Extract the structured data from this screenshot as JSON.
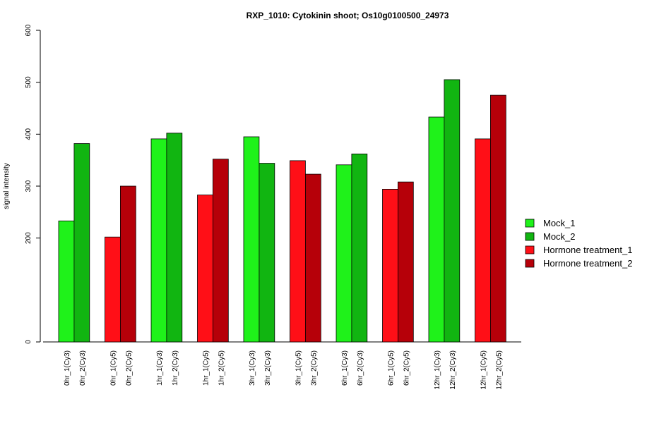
{
  "chart_data": {
    "type": "bar",
    "title": "RXP_1010: Cytokinin shoot; Os10g0100500_24973",
    "ylabel": "signal intensity",
    "xlabel": "",
    "ylim": [
      0,
      600
    ],
    "yticks": [
      0,
      200,
      300,
      400,
      500,
      600
    ],
    "legend_position": "right",
    "legend": [
      {
        "name": "Mock_1",
        "color": "#1ff21a"
      },
      {
        "name": "Mock_2",
        "color": "#11b511"
      },
      {
        "name": "Hormone treatment_1",
        "color": "#ff0f17"
      },
      {
        "name": "Hormone treatment_2",
        "color": "#b60009"
      }
    ],
    "bars": [
      {
        "label": "0hr_1(Cy3)",
        "value": 233,
        "series": 0
      },
      {
        "label": "0hr_2(Cy3)",
        "value": 382,
        "series": 1
      },
      {
        "label": "0hr_1(Cy5)",
        "value": 202,
        "series": 2
      },
      {
        "label": "0hr_2(Cy5)",
        "value": 300,
        "series": 3
      },
      {
        "label": "1hr_1(Cy3)",
        "value": 391,
        "series": 0
      },
      {
        "label": "1hr_2(Cy3)",
        "value": 402,
        "series": 1
      },
      {
        "label": "1hr_1(Cy5)",
        "value": 283,
        "series": 2
      },
      {
        "label": "1hr_2(Cy5)",
        "value": 352,
        "series": 3
      },
      {
        "label": "3hr_1(Cy3)",
        "value": 395,
        "series": 0
      },
      {
        "label": "3hr_2(Cy3)",
        "value": 344,
        "series": 1
      },
      {
        "label": "3hr_1(Cy5)",
        "value": 349,
        "series": 2
      },
      {
        "label": "3hr_2(Cy5)",
        "value": 323,
        "series": 3
      },
      {
        "label": "6hr_1(Cy3)",
        "value": 341,
        "series": 0
      },
      {
        "label": "6hr_2(Cy3)",
        "value": 362,
        "series": 1
      },
      {
        "label": "6hr_1(Cy5)",
        "value": 294,
        "series": 2
      },
      {
        "label": "6hr_2(Cy5)",
        "value": 308,
        "series": 3
      },
      {
        "label": "12hr_1(Cy3)",
        "value": 433,
        "series": 0
      },
      {
        "label": "12hr_2(Cy3)",
        "value": 505,
        "series": 1
      },
      {
        "label": "12hr_1(Cy5)",
        "value": 391,
        "series": 2
      },
      {
        "label": "12hr_2(Cy5)",
        "value": 475,
        "series": 3
      }
    ]
  }
}
